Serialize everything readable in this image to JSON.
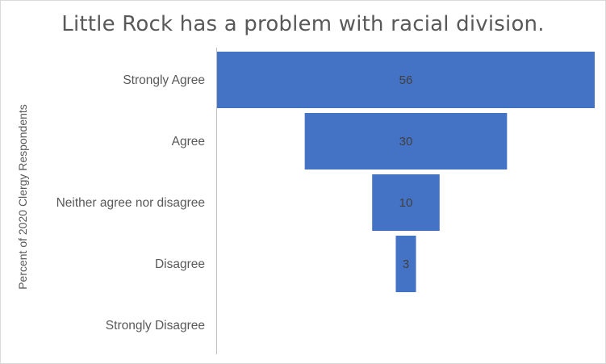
{
  "chart_data": {
    "type": "bar",
    "title": "Little Rock has a problem with racial division.",
    "ylabel": "Percent of 2020 Clergy Respondents",
    "categories": [
      "Strongly Agree",
      "Agree",
      "Neither agree nor disagree",
      "Disagree",
      "Strongly Disagree"
    ],
    "values": [
      56,
      30,
      10,
      3,
      0
    ],
    "data_labels": [
      "56",
      "30",
      "10",
      "3",
      ""
    ],
    "xlim": [
      0,
      56
    ],
    "bar_color": "#4472C4",
    "bar_alignment": "centered (funnel)",
    "grid": false
  }
}
